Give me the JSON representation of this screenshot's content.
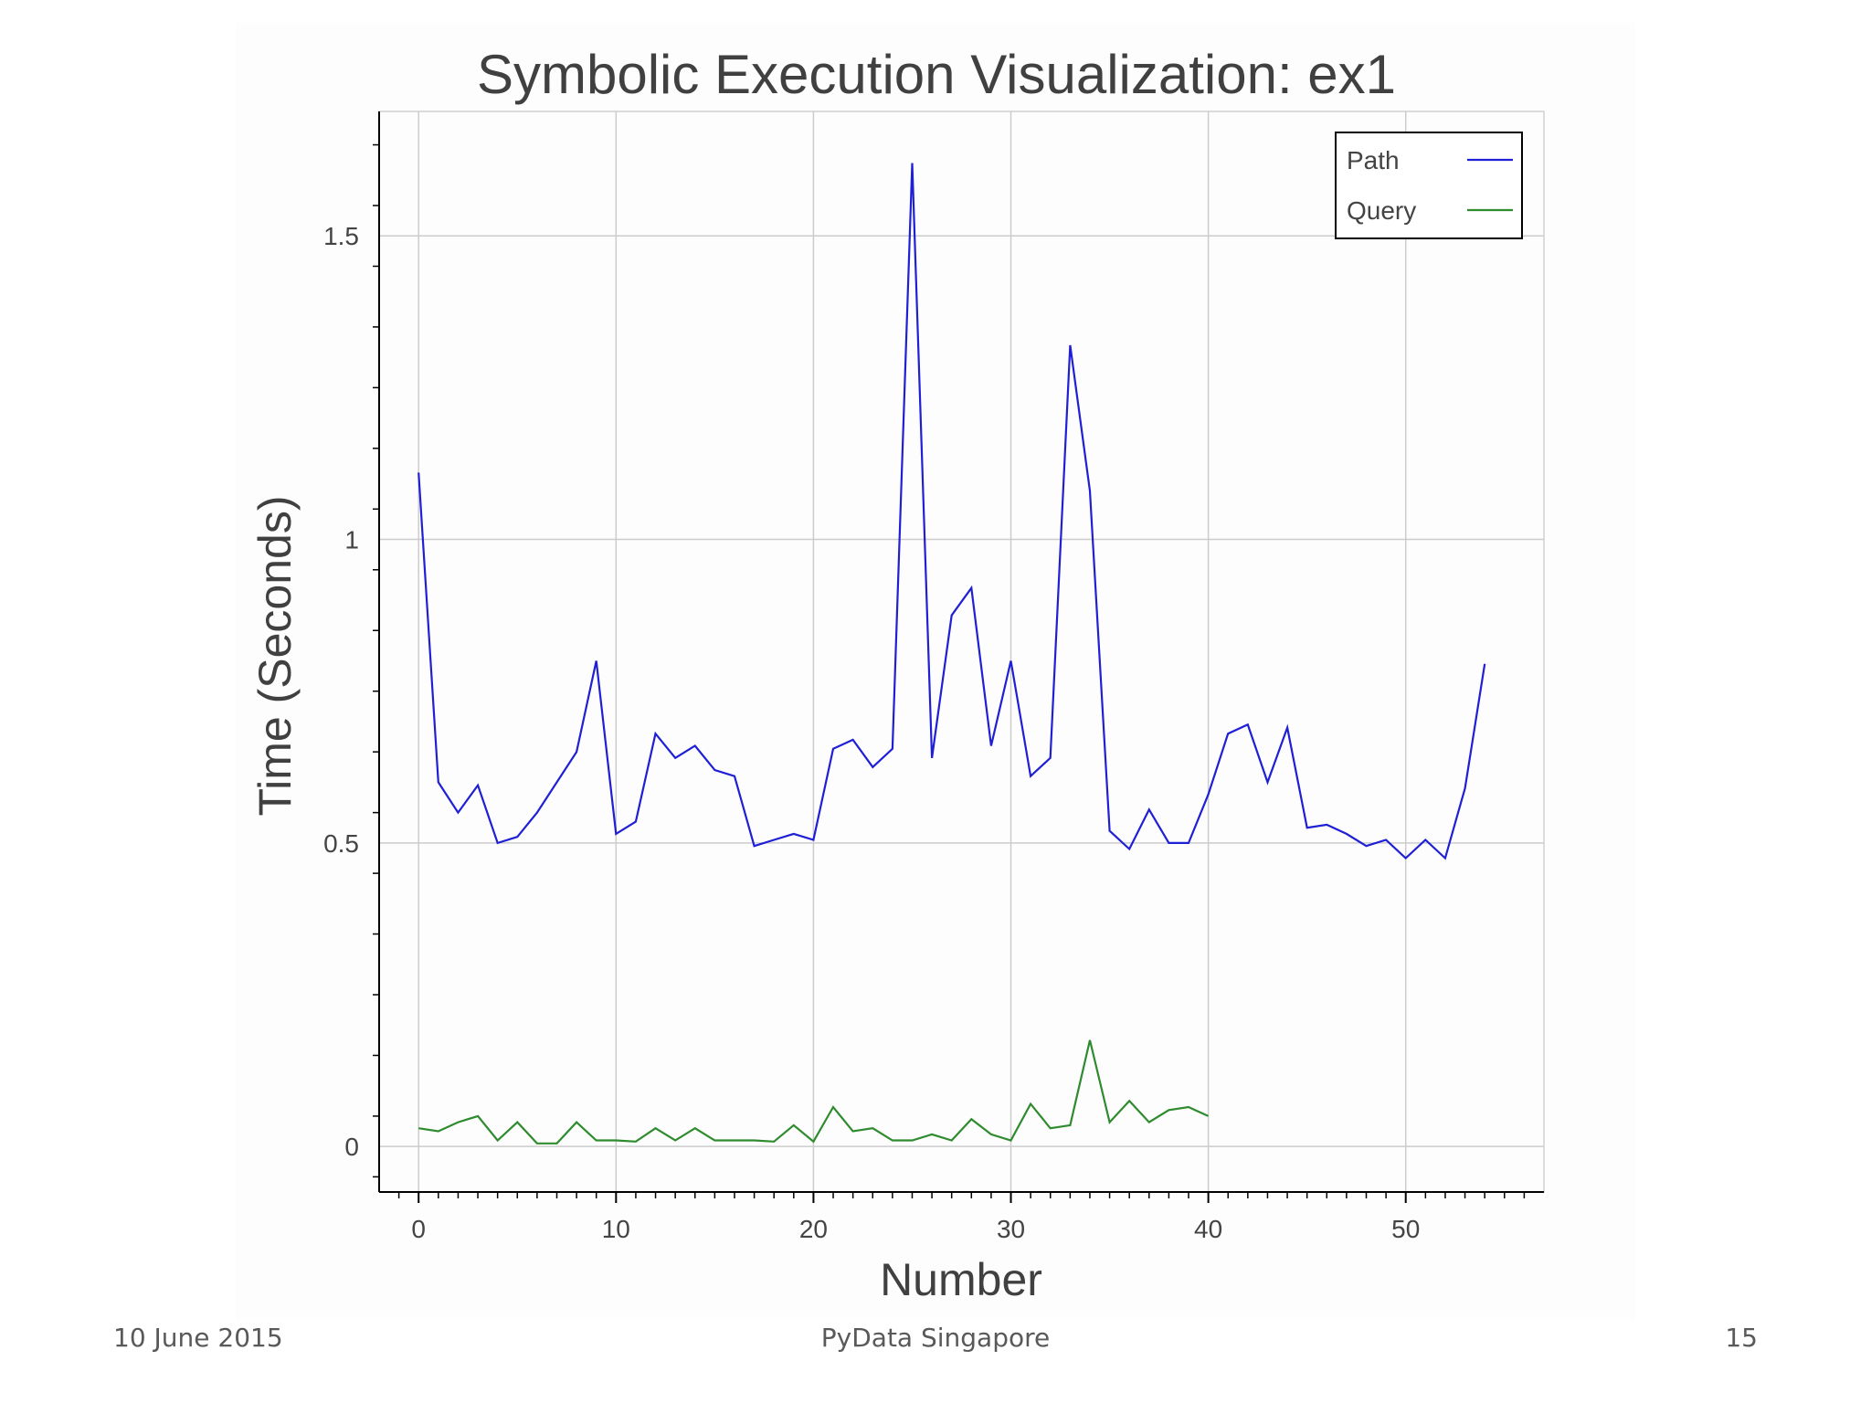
{
  "chart_data": {
    "type": "line",
    "title": "Symbolic Execution Visualization: ex1",
    "xlabel": "Number",
    "ylabel": "Time (Seconds)",
    "xlim": [
      -2,
      57
    ],
    "ylim": [
      -0.075,
      1.705
    ],
    "x_ticks": [
      0,
      10,
      20,
      30,
      40,
      50
    ],
    "x_tick_labels": [
      "0",
      "10",
      "20",
      "30",
      "40",
      "50"
    ],
    "y_ticks": [
      0,
      0.5,
      1,
      1.5
    ],
    "y_tick_labels": [
      "0",
      "0.5",
      "1",
      "1.5"
    ],
    "grid": true,
    "legend_position": "top-right",
    "series": [
      {
        "name": "Path",
        "color": "#1f1fd6",
        "x": [
          0,
          1,
          2,
          3,
          4,
          5,
          6,
          7,
          8,
          9,
          10,
          11,
          12,
          13,
          14,
          15,
          16,
          17,
          18,
          19,
          20,
          21,
          22,
          23,
          24,
          25,
          26,
          27,
          28,
          29,
          30,
          31,
          32,
          33,
          34,
          35,
          36,
          37,
          38,
          39,
          40,
          41,
          42,
          43,
          44,
          45,
          46,
          47,
          48,
          49,
          50,
          51,
          52,
          53,
          54
        ],
        "values": [
          1.11,
          0.6,
          0.55,
          0.595,
          0.5,
          0.51,
          0.55,
          0.6,
          0.65,
          0.8,
          0.515,
          0.535,
          0.68,
          0.64,
          0.66,
          0.62,
          0.61,
          0.495,
          0.505,
          0.515,
          0.505,
          0.655,
          0.67,
          0.625,
          0.655,
          1.62,
          0.64,
          0.875,
          0.92,
          0.66,
          0.8,
          0.61,
          0.64,
          1.32,
          1.08,
          0.52,
          0.49,
          0.555,
          0.5,
          0.5,
          0.58,
          0.68,
          0.695,
          0.6,
          0.69,
          0.525,
          0.53,
          0.515,
          0.495,
          0.505,
          0.475,
          0.505,
          0.475,
          0.59,
          0.795
        ]
      },
      {
        "name": "Query",
        "color": "#2e8b2e",
        "x": [
          0,
          1,
          2,
          3,
          4,
          5,
          6,
          7,
          8,
          9,
          10,
          11,
          12,
          13,
          14,
          15,
          16,
          17,
          18,
          19,
          20,
          21,
          22,
          23,
          24,
          25,
          26,
          27,
          28,
          29,
          30,
          31,
          32,
          33,
          34,
          35,
          36,
          37,
          38,
          39,
          40
        ],
        "values": [
          0.03,
          0.025,
          0.04,
          0.05,
          0.01,
          0.04,
          0.005,
          0.005,
          0.04,
          0.01,
          0.01,
          0.008,
          0.03,
          0.01,
          0.03,
          0.01,
          0.01,
          0.01,
          0.008,
          0.035,
          0.008,
          0.065,
          0.025,
          0.03,
          0.01,
          0.01,
          0.02,
          0.01,
          0.045,
          0.02,
          0.01,
          0.07,
          0.03,
          0.035,
          0.175,
          0.04,
          0.075,
          0.04,
          0.06,
          0.065,
          0.05
        ]
      }
    ]
  },
  "footer": {
    "date": "10 June 2015",
    "event": "PyData Singapore",
    "page": "15"
  }
}
